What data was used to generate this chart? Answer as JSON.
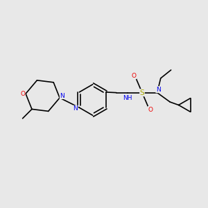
{
  "bg_color": "#e8e8e8",
  "bond_color": "#000000",
  "bond_width": 1.2,
  "atom_colors": {
    "N": "#0000ee",
    "O": "#ee0000",
    "S": "#aaaa00",
    "C": "#000000"
  },
  "font_size": 6.5,
  "figsize": [
    3.0,
    3.0
  ],
  "dpi": 100
}
